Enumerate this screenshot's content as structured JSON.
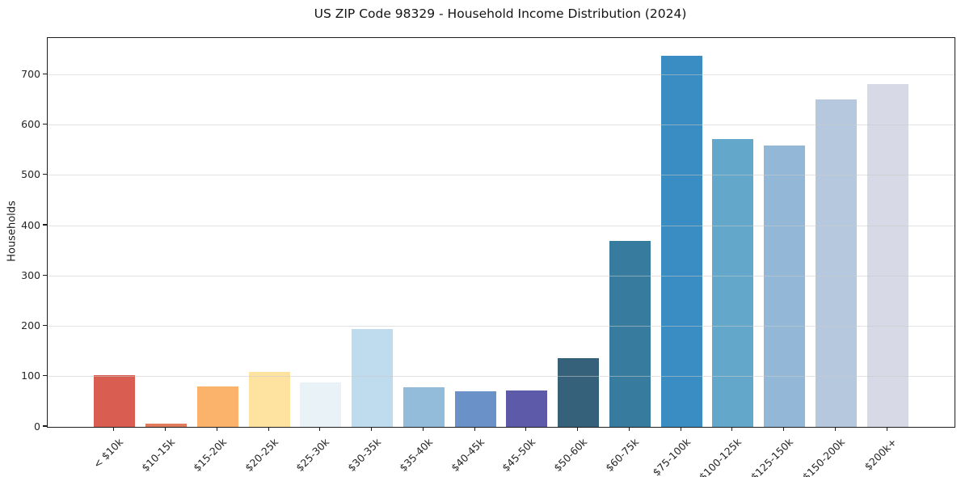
{
  "chart_data": {
    "type": "bar",
    "title": "US ZIP Code 98329 - Household Income Distribution (2024)",
    "xlabel": "",
    "ylabel": "Households",
    "categories": [
      "< $10k",
      "$10-15k",
      "$15-20k",
      "$20-25k",
      "$25-30k",
      "$30-35k",
      "$35-40k",
      "$40-45k",
      "$45-50k",
      "$50-60k",
      "$60-75k",
      "$75-100k",
      "$100-125k",
      "$125-150k",
      "$150-200k",
      "$200k+"
    ],
    "values": [
      103,
      7,
      80,
      110,
      89,
      195,
      79,
      70,
      72,
      137,
      370,
      738,
      572,
      560,
      651,
      682
    ],
    "bar_colors": [
      "#d95d51",
      "#e07c5d",
      "#fbb36c",
      "#fde2a0",
      "#e8f2f7",
      "#bedced",
      "#92bcda",
      "#6b92c8",
      "#5c5aa9",
      "#36617a",
      "#377b9f",
      "#398dc2",
      "#63a8ca",
      "#93b8d7",
      "#b6c8de",
      "#d8d9e6"
    ],
    "ylim": [
      0,
      773
    ],
    "yticks": [
      0,
      100,
      200,
      300,
      400,
      500,
      600,
      700
    ],
    "grid": "horizontal",
    "grid_color": "#e9e9e9",
    "spine_color": "#1c1c1c",
    "background": "#ffffff",
    "legend": "none"
  }
}
